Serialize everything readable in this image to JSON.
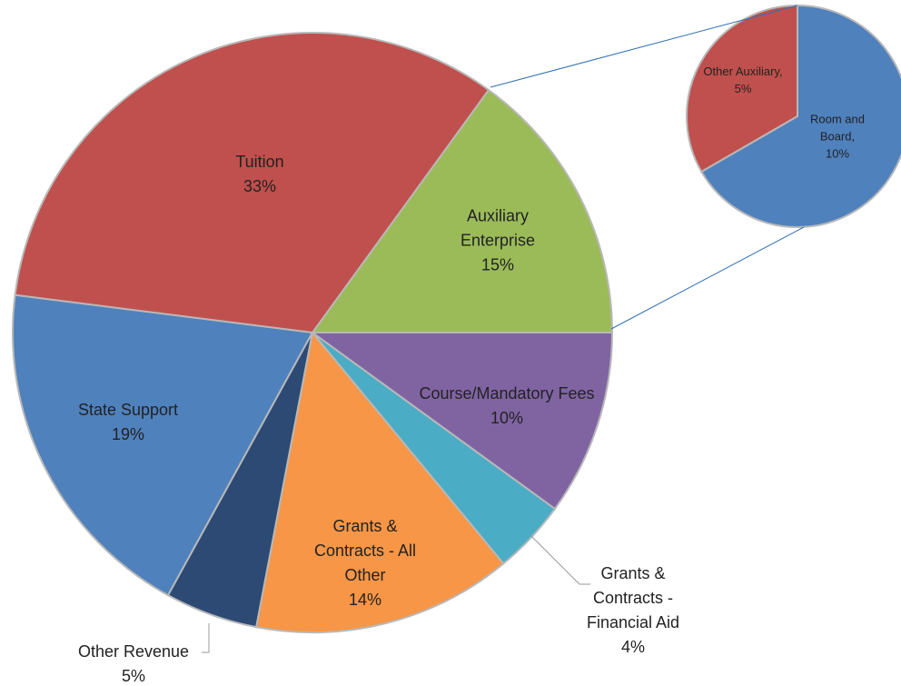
{
  "chart_data": [
    {
      "type": "pie",
      "categories": [
        "Tuition",
        "Auxiliary Enterprise",
        "Course/Mandatory Fees",
        "Grants & Contracts - Financial Aid",
        "Grants & Contracts - All Other",
        "Other Revenue",
        "State Support"
      ],
      "values": [
        33,
        15,
        10,
        4,
        14,
        5,
        19
      ],
      "value_labels": [
        "33%",
        "15%",
        "10%",
        "4%",
        "14%",
        "5%",
        "19%"
      ],
      "colors": [
        "#c0504d",
        "#9bbb59",
        "#8064a2",
        "#4bacc6",
        "#f79646",
        "#2c4a74",
        "#4f81bd"
      ]
    },
    {
      "type": "pie",
      "categories": [
        "Room and Board",
        "Other Auxiliary"
      ],
      "values": [
        10,
        5
      ],
      "value_labels": [
        "Room and Board, 10%",
        "Other Auxiliary, 5%"
      ],
      "colors": [
        "#4f81bd",
        "#c0504d"
      ]
    }
  ]
}
